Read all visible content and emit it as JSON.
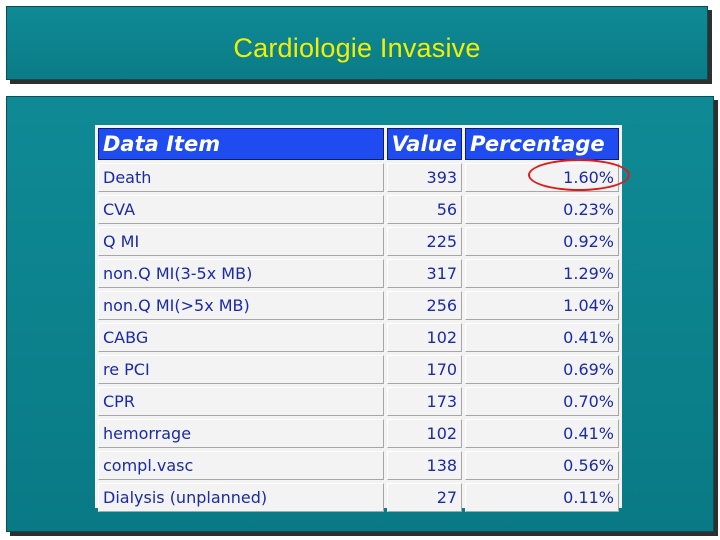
{
  "slide": {
    "title": "Cardiologie Invasive"
  },
  "table": {
    "headers": [
      "Data Item",
      "Value",
      "Percentage"
    ],
    "rows": [
      {
        "item": "Death",
        "value": "393",
        "percentage": "1.60%"
      },
      {
        "item": "CVA",
        "value": "56",
        "percentage": "0.23%"
      },
      {
        "item": "Q MI",
        "value": "225",
        "percentage": "0.92%"
      },
      {
        "item": "non.Q MI(3-5x MB)",
        "value": "317",
        "percentage": "1.29%"
      },
      {
        "item": "non.Q MI(>5x MB)",
        "value": "256",
        "percentage": "1.04%"
      },
      {
        "item": "CABG",
        "value": "102",
        "percentage": "0.41%"
      },
      {
        "item": "re PCI",
        "value": "170",
        "percentage": "0.69%"
      },
      {
        "item": "CPR",
        "value": "173",
        "percentage": "0.70%"
      },
      {
        "item": "hemorrage",
        "value": "102",
        "percentage": "0.41%"
      },
      {
        "item": "compl.vasc",
        "value": "138",
        "percentage": "0.56%"
      },
      {
        "item": "Dialysis (unplanned)",
        "value": "27",
        "percentage": "0.11%"
      }
    ]
  },
  "colors": {
    "panel": "#0a7c87",
    "title_text": "#f2f000",
    "header_bg": "#1f4cf0",
    "cell_text": "#1a2aa8",
    "highlight": "#e01a1a"
  }
}
